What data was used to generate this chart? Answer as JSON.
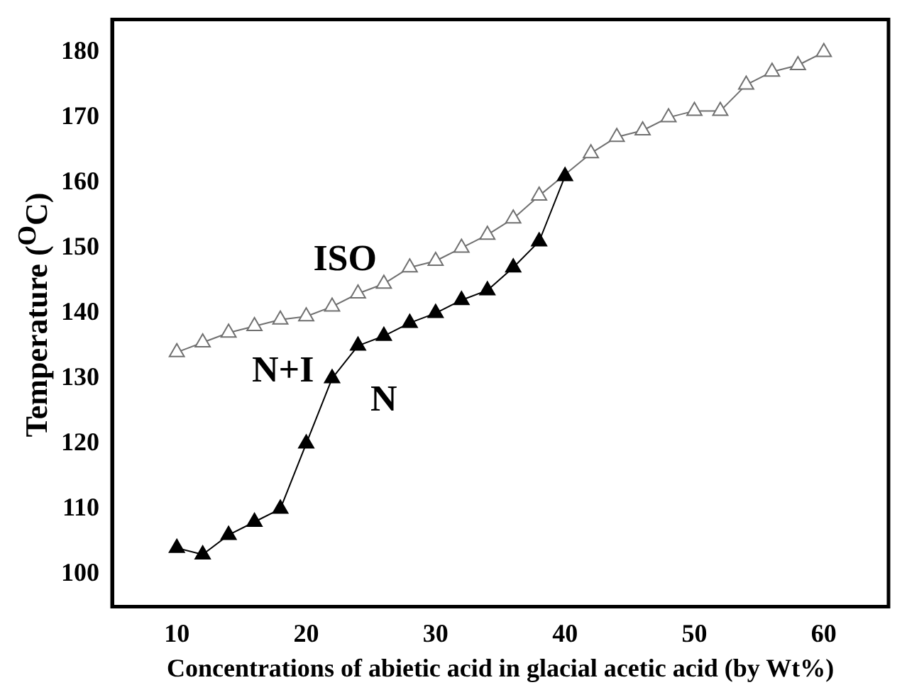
{
  "chart_data": {
    "type": "line",
    "xlabel": "Concentrations of abietic acid in glacial acetic acid (by Wt%)",
    "ylabel": "Temperature ($^{O}$C)",
    "xlim": [
      5,
      65
    ],
    "xticks": [
      10,
      20,
      30,
      40,
      50,
      60
    ],
    "ylim": [
      95,
      185
    ],
    "yticks": [
      100,
      110,
      120,
      130,
      140,
      150,
      160,
      170,
      180
    ],
    "grid": false,
    "legend": false,
    "marker": "triangle",
    "line_style": "solid",
    "series": [
      {
        "color": "#707070",
        "x": [
          10,
          12,
          14,
          16,
          18,
          20,
          22,
          24,
          26,
          28,
          30,
          32,
          34,
          36,
          38,
          40,
          42,
          44,
          46,
          48,
          50,
          52,
          54,
          56,
          58,
          60
        ],
        "values": [
          134,
          135.5,
          137,
          138,
          139,
          139.5,
          141,
          143,
          144.5,
          147,
          148,
          150,
          152,
          154.5,
          158,
          null,
          164.5,
          167,
          168,
          170,
          171,
          171,
          175,
          177,
          178,
          180
        ]
      },
      {
        "color": "#000000",
        "x": [
          10,
          12,
          14,
          16,
          18,
          20,
          22,
          24,
          26,
          28,
          30,
          32,
          34,
          36,
          38,
          40
        ],
        "values": [
          104,
          103,
          106,
          108,
          110,
          120,
          130,
          135,
          136.5,
          138.5,
          140,
          142,
          143.5,
          147,
          151,
          161
        ]
      }
    ],
    "annotations": [
      "ISO",
      "N+I",
      "N"
    ]
  }
}
